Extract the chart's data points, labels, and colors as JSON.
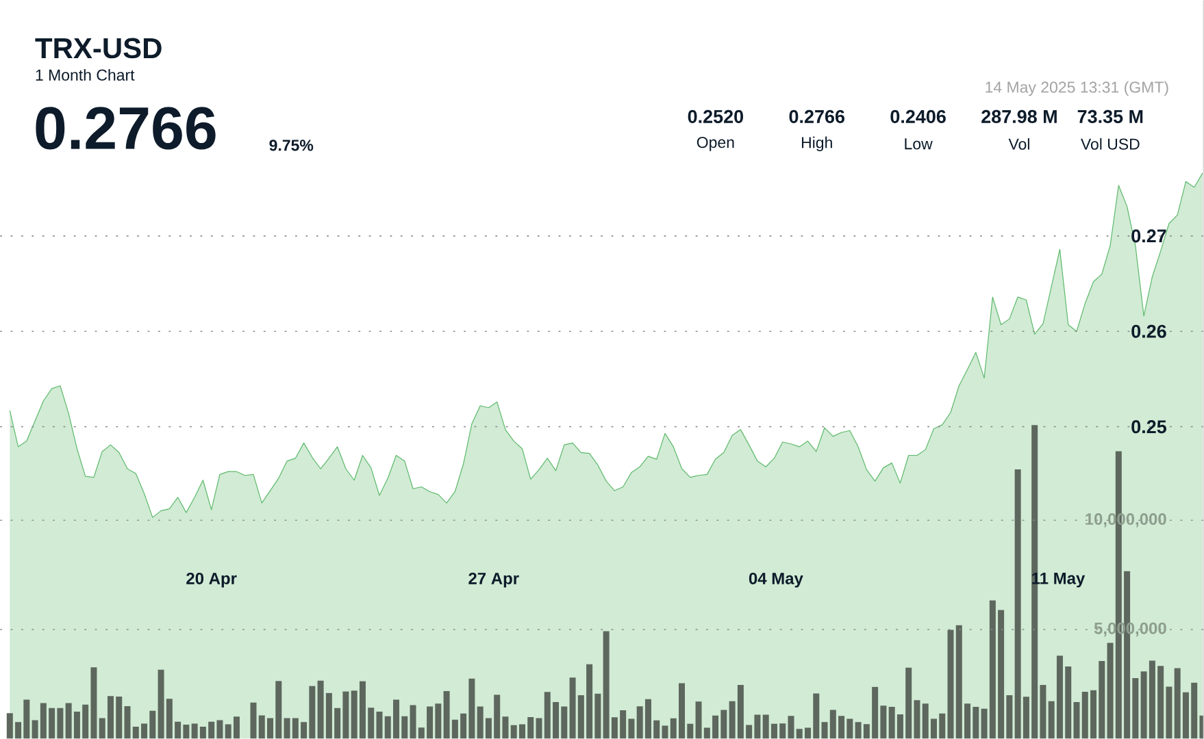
{
  "chart_data": {
    "type": "area",
    "title": "TRX-USD",
    "subtitle": "1 Month Chart",
    "annotations": [
      "0.2766",
      "9.75%",
      "14 May 2025 13:31 (GMT)",
      "0.2520",
      "Open",
      "0.2766",
      "High",
      "0.2406",
      "Low",
      "287.98 M",
      "Vol",
      "73.35 M",
      "Vol USD"
    ],
    "x": [
      "2025-04-15T00:00",
      "2025-04-15T05:00",
      "2025-04-15T10:00",
      "2025-04-15T15:00",
      "2025-04-15T20:00",
      "2025-04-16T01:00",
      "2025-04-16T06:00",
      "2025-04-16T11:00",
      "2025-04-16T16:00",
      "2025-04-16T21:00",
      "2025-04-17T02:00",
      "2025-04-17T07:00",
      "2025-04-17T12:00",
      "2025-04-17T17:00",
      "2025-04-17T22:00",
      "2025-04-18T03:00",
      "2025-04-18T08:00",
      "2025-04-18T13:00",
      "2025-04-18T18:00",
      "2025-04-18T23:00",
      "2025-04-19T04:00",
      "2025-04-19T09:00",
      "2025-04-19T14:00",
      "2025-04-19T19:00",
      "2025-04-20T00:00",
      "2025-04-20T05:00",
      "2025-04-20T10:00",
      "2025-04-20T15:00",
      "2025-04-20T20:00",
      "2025-04-21T01:00",
      "2025-04-21T06:00",
      "2025-04-21T11:00",
      "2025-04-21T16:00",
      "2025-04-21T21:00",
      "2025-04-22T02:00",
      "2025-04-22T07:00",
      "2025-04-22T12:00",
      "2025-04-22T17:00",
      "2025-04-22T22:00",
      "2025-04-23T03:00",
      "2025-04-23T08:00",
      "2025-04-23T13:00",
      "2025-04-23T18:00",
      "2025-04-23T23:00",
      "2025-04-24T04:00",
      "2025-04-24T09:00",
      "2025-04-24T14:00",
      "2025-04-24T19:00",
      "2025-04-25T00:00",
      "2025-04-25T05:00",
      "2025-04-25T10:00",
      "2025-04-25T15:00",
      "2025-04-25T20:00",
      "2025-04-26T01:00",
      "2025-04-26T06:00",
      "2025-04-26T11:00",
      "2025-04-26T16:00",
      "2025-04-26T21:00",
      "2025-04-27T02:00",
      "2025-04-27T07:00",
      "2025-04-27T12:00",
      "2025-04-27T17:00",
      "2025-04-27T22:00",
      "2025-04-28T03:00",
      "2025-04-28T08:00",
      "2025-04-28T13:00",
      "2025-04-28T18:00",
      "2025-04-28T23:00",
      "2025-04-29T04:00",
      "2025-04-29T09:00",
      "2025-04-29T14:00",
      "2025-04-29T19:00",
      "2025-04-30T00:00",
      "2025-04-30T05:00",
      "2025-04-30T10:00",
      "2025-04-30T15:00",
      "2025-04-30T20:00",
      "2025-05-01T01:00",
      "2025-05-01T06:00",
      "2025-05-01T11:00",
      "2025-05-01T16:00",
      "2025-05-01T21:00",
      "2025-05-02T02:00",
      "2025-05-02T07:00",
      "2025-05-02T12:00",
      "2025-05-02T17:00",
      "2025-05-02T22:00",
      "2025-05-03T03:00",
      "2025-05-03T08:00",
      "2025-05-03T13:00",
      "2025-05-03T18:00",
      "2025-05-03T23:00",
      "2025-05-04T04:00",
      "2025-05-04T09:00",
      "2025-05-04T14:00",
      "2025-05-04T19:00",
      "2025-05-05T00:00",
      "2025-05-05T05:00",
      "2025-05-05T10:00",
      "2025-05-05T15:00",
      "2025-05-05T20:00",
      "2025-05-06T01:00",
      "2025-05-06T06:00",
      "2025-05-06T11:00",
      "2025-05-06T16:00",
      "2025-05-06T21:00",
      "2025-05-07T02:00",
      "2025-05-07T07:00",
      "2025-05-07T12:00",
      "2025-05-07T17:00",
      "2025-05-07T22:00",
      "2025-05-08T03:00",
      "2025-05-08T08:00",
      "2025-05-08T13:00",
      "2025-05-08T18:00",
      "2025-05-08T23:00",
      "2025-05-09T04:00",
      "2025-05-09T09:00",
      "2025-05-09T14:00",
      "2025-05-09T19:00",
      "2025-05-10T00:00",
      "2025-05-10T05:00",
      "2025-05-10T10:00",
      "2025-05-10T15:00",
      "2025-05-10T20:00",
      "2025-05-11T01:00",
      "2025-05-11T06:00",
      "2025-05-11T11:00",
      "2025-05-11T16:00",
      "2025-05-11T21:00",
      "2025-05-12T02:00",
      "2025-05-12T07:00",
      "2025-05-12T12:00",
      "2025-05-12T17:00",
      "2025-05-12T22:00",
      "2025-05-13T03:00",
      "2025-05-13T08:00",
      "2025-05-13T13:00",
      "2025-05-13T18:00",
      "2025-05-13T23:00",
      "2025-05-14T04:00",
      "2025-05-14T09:00",
      "2025-05-14T14:00"
    ],
    "series": [
      {
        "color": "#5cb96a",
        "values": [
          0.2517,
          0.2479,
          0.2485,
          0.2506,
          0.2527,
          0.254,
          0.2543,
          0.2514,
          0.2477,
          0.2448,
          0.2447,
          0.2474,
          0.2481,
          0.2473,
          0.2456,
          0.2451,
          0.243,
          0.2405,
          0.2412,
          0.2414,
          0.2426,
          0.241,
          0.2426,
          0.2444,
          0.2413,
          0.245,
          0.2453,
          0.2453,
          0.2449,
          0.245,
          0.242,
          0.2433,
          0.2446,
          0.2464,
          0.2467,
          0.2483,
          0.2468,
          0.2456,
          0.2467,
          0.2479,
          0.2456,
          0.2444,
          0.247,
          0.2457,
          0.2428,
          0.2446,
          0.247,
          0.2464,
          0.2435,
          0.2437,
          0.2432,
          0.2429,
          0.242,
          0.2432,
          0.2461,
          0.2503,
          0.2522,
          0.252,
          0.2526,
          0.2497,
          0.2485,
          0.2477,
          0.2445,
          0.2455,
          0.2467,
          0.2454,
          0.2481,
          0.2483,
          0.2473,
          0.2472,
          0.246,
          0.2443,
          0.2433,
          0.2437,
          0.2452,
          0.2458,
          0.2469,
          0.2466,
          0.2493,
          0.2479,
          0.2456,
          0.2447,
          0.2449,
          0.245,
          0.2466,
          0.2473,
          0.2491,
          0.2497,
          0.2481,
          0.2464,
          0.2458,
          0.2467,
          0.2484,
          0.2482,
          0.2479,
          0.2485,
          0.2474,
          0.2499,
          0.249,
          0.2494,
          0.2496,
          0.2479,
          0.2455,
          0.2443,
          0.2457,
          0.2462,
          0.2441,
          0.247,
          0.247,
          0.2476,
          0.2498,
          0.2502,
          0.2515,
          0.2543,
          0.256,
          0.2578,
          0.2551,
          0.2636,
          0.2607,
          0.2613,
          0.2636,
          0.2633,
          0.2597,
          0.2608,
          0.2647,
          0.2686,
          0.2607,
          0.26,
          0.2629,
          0.2652,
          0.266,
          0.269,
          0.2753,
          0.2731,
          0.269,
          0.2616,
          0.2657,
          0.2684,
          0.2713,
          0.2722,
          0.2757,
          0.2751,
          0.2766
        ]
      },
      {
        "type": "bar",
        "axis": "y2",
        "color": "#5d675d",
        "values": [
          1170000,
          760000,
          1790000,
          850000,
          1630000,
          1400000,
          1400000,
          1630000,
          1240000,
          1560000,
          3270000,
          940000,
          1950000,
          1930000,
          1490000,
          550000,
          690000,
          1280000,
          3160000,
          1830000,
          780000,
          640000,
          690000,
          550000,
          780000,
          850000,
          660000,
          1010000,
          null,
          1650000,
          1070000,
          940000,
          2640000,
          940000,
          940000,
          760000,
          2410000,
          2660000,
          2090000,
          1400000,
          2160000,
          2200000,
          2630000,
          1420000,
          1240000,
          1030000,
          1790000,
          1030000,
          1540000,
          510000,
          1470000,
          1610000,
          2180000,
          870000,
          1150000,
          2750000,
          1470000,
          940000,
          2010000,
          1010000,
          620000,
          660000,
          990000,
          940000,
          2140000,
          1680000,
          1470000,
          2800000,
          1990000,
          3410000,
          2060000,
          4920000,
          980000,
          1300000,
          910000,
          1480000,
          1810000,
          840000,
          600000,
          930000,
          2540000,
          680000,
          1700000,
          500000,
          1060000,
          1320000,
          1720000,
          2460000,
          630000,
          1100000,
          1100000,
          680000,
          700000,
          1040000,
          450000,
          500000,
          2070000,
          760000,
          1320000,
          1040000,
          910000,
          760000,
          670000,
          2370000,
          1510000,
          1460000,
          1110000,
          3250000,
          1760000,
          1610000,
          910000,
          1150000,
          4980000,
          5190000,
          1610000,
          1460000,
          1370000,
          6330000,
          5890000,
          1990000,
          12330000,
          1920000,
          14360000,
          2460000,
          1720000,
          3800000,
          3310000,
          1680000,
          2150000,
          2220000,
          3560000,
          4390000,
          13160000,
          7670000,
          2770000,
          3080000,
          3570000,
          3330000,
          2380000,
          3230000,
          2120000,
          2560000,
          1060000
        ]
      }
    ],
    "xlim": [
      "2025-04-14T18:30",
      "2025-05-14T14:30"
    ],
    "xticks": [
      {
        "value": "2025-04-20",
        "label": "20 Apr"
      },
      {
        "value": "2025-04-27",
        "label": "27 Apr"
      },
      {
        "value": "2025-05-04",
        "label": "04 May"
      },
      {
        "value": "2025-05-11",
        "label": "11 May"
      }
    ],
    "ylim": [
      0.2173,
      0.2947
    ],
    "yticks": [
      0.25,
      0.26,
      0.27
    ],
    "y2lim": [
      0,
      33800000
    ],
    "y2ticks": [
      {
        "value": 5000000,
        "label": "5,000,000"
      },
      {
        "value": 10000000,
        "label": "10,000,000"
      }
    ],
    "grid": "y"
  }
}
